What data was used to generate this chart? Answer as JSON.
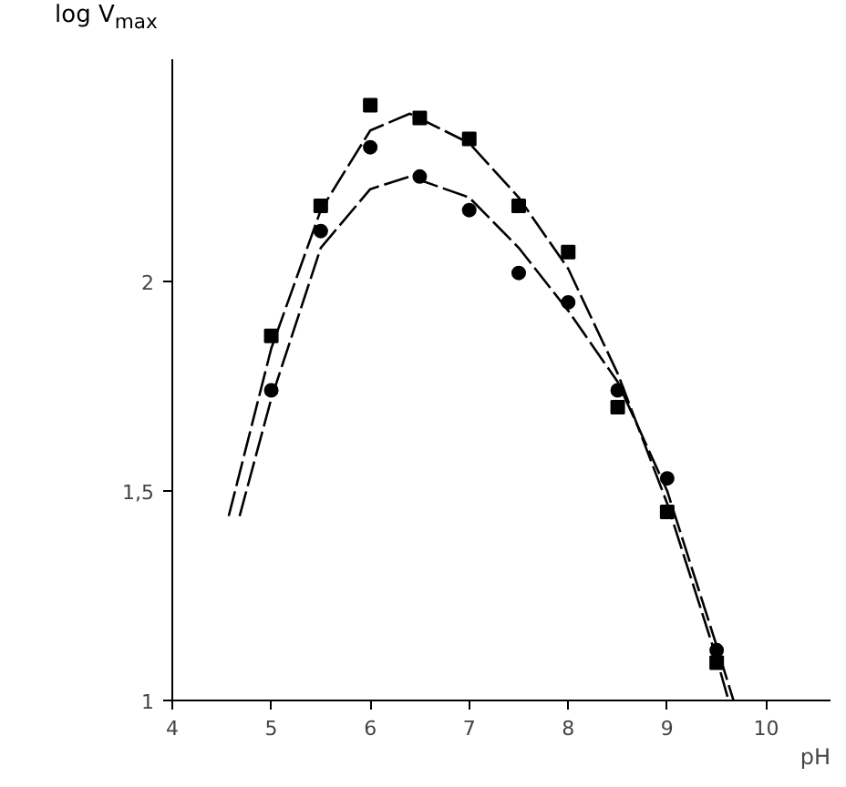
{
  "chart_data": {
    "type": "scatter",
    "xlabel": "pH",
    "ylabel": "log V$_{max}$",
    "xlim": [
      4,
      10.65
    ],
    "ylim": [
      1,
      2.53
    ],
    "xticks": [
      4,
      5,
      6,
      7,
      8,
      9,
      10
    ],
    "yticks": [
      1,
      {
        "value": 1.5,
        "label": "1,5"
      },
      2
    ],
    "grid": false,
    "series": [
      {
        "marker": "square",
        "color": "#000000",
        "x": [
          5,
          5.5,
          6,
          6.5,
          7,
          7.5,
          8,
          8.5,
          9,
          9.5
        ],
        "values": [
          1.87,
          2.18,
          2.42,
          2.39,
          2.34,
          2.18,
          2.07,
          1.7,
          1.45,
          1.09
        ]
      },
      {
        "marker": "circle",
        "color": "#000000",
        "x": [
          5,
          5.5,
          6,
          6.5,
          7,
          7.5,
          8,
          8.5,
          9,
          9.5
        ],
        "values": [
          1.74,
          2.12,
          2.32,
          2.25,
          2.17,
          2.02,
          1.95,
          1.74,
          1.53,
          1.12
        ]
      },
      {
        "type": "line",
        "line_style": "dashed",
        "color": "#000000",
        "x": [
          4.57,
          5,
          5.5,
          6,
          6.4,
          7,
          7.5,
          8,
          8.5,
          9,
          9.5,
          9.62
        ],
        "values": [
          1.44,
          1.84,
          2.17,
          2.36,
          2.4,
          2.33,
          2.2,
          2.03,
          1.78,
          1.47,
          1.1,
          1.0
        ]
      },
      {
        "type": "line",
        "line_style": "dashed",
        "color": "#000000",
        "x": [
          4.68,
          5,
          5.5,
          6,
          6.4,
          7,
          7.5,
          8,
          8.5,
          9,
          9.5,
          9.67
        ],
        "values": [
          1.44,
          1.72,
          2.08,
          2.22,
          2.25,
          2.2,
          2.08,
          1.93,
          1.76,
          1.5,
          1.13,
          1.0
        ]
      }
    ]
  }
}
